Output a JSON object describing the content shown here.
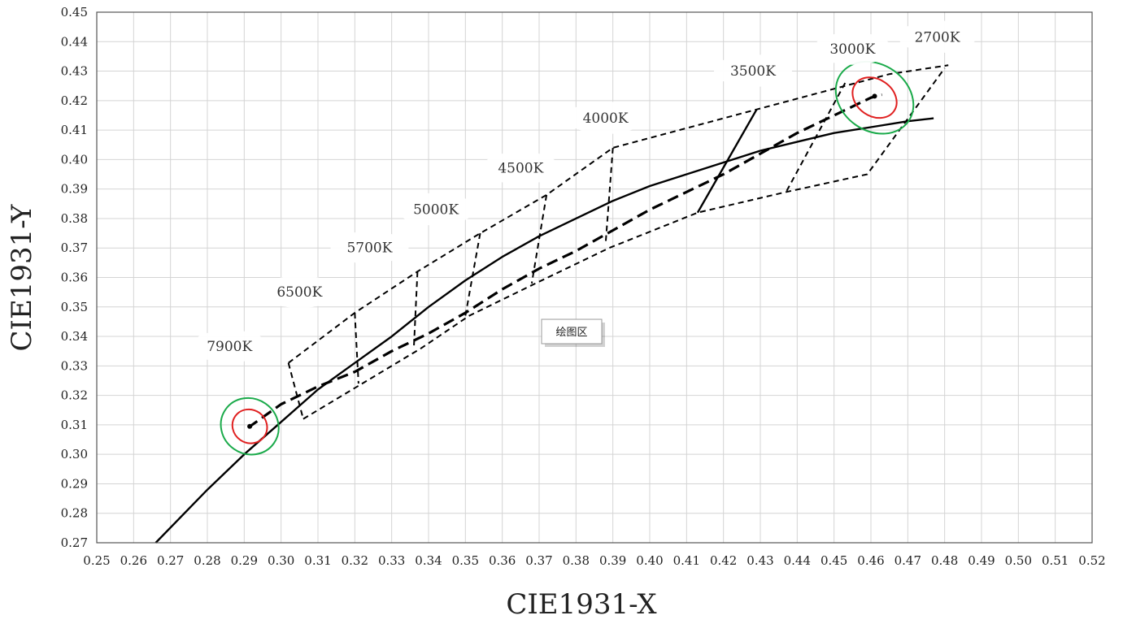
{
  "chart_data": {
    "type": "line",
    "xlabel": "CIE1931-X",
    "ylabel": "CIE1931-Y",
    "xlim": [
      0.25,
      0.52
    ],
    "ylim": [
      0.27,
      0.45
    ],
    "x_ticks": [
      "0.25",
      "0.26",
      "0.27",
      "0.28",
      "0.29",
      "0.30",
      "0.31",
      "0.32",
      "0.33",
      "0.34",
      "0.35",
      "0.36",
      "0.37",
      "0.38",
      "0.39",
      "0.40",
      "0.41",
      "0.42",
      "0.43",
      "0.44",
      "0.45",
      "0.46",
      "0.47",
      "0.48",
      "0.49",
      "0.50",
      "0.51",
      "0.52"
    ],
    "y_ticks": [
      "0.27",
      "0.28",
      "0.29",
      "0.30",
      "0.31",
      "0.32",
      "0.33",
      "0.34",
      "0.35",
      "0.36",
      "0.37",
      "0.38",
      "0.39",
      "0.40",
      "0.41",
      "0.42",
      "0.43",
      "0.44",
      "0.45"
    ],
    "grid": true,
    "plot_area_tag": "绘图区",
    "series": [
      {
        "style": "solid",
        "color": "#000000",
        "points": [
          [
            0.266,
            0.27
          ],
          [
            0.28,
            0.288
          ],
          [
            0.29,
            0.3
          ],
          [
            0.3,
            0.311
          ],
          [
            0.31,
            0.322
          ],
          [
            0.32,
            0.331
          ],
          [
            0.33,
            0.34
          ],
          [
            0.34,
            0.35
          ],
          [
            0.35,
            0.359
          ],
          [
            0.36,
            0.367
          ],
          [
            0.37,
            0.374
          ],
          [
            0.38,
            0.38
          ],
          [
            0.39,
            0.386
          ],
          [
            0.4,
            0.391
          ],
          [
            0.41,
            0.395
          ],
          [
            0.42,
            0.399
          ],
          [
            0.43,
            0.403
          ],
          [
            0.44,
            0.406
          ],
          [
            0.45,
            0.409
          ],
          [
            0.46,
            0.411
          ],
          [
            0.47,
            0.413
          ],
          [
            0.477,
            0.414
          ]
        ]
      },
      {
        "style": "dashed-bold",
        "color": "#000000",
        "points": [
          [
            0.291,
            0.309
          ],
          [
            0.3,
            0.317
          ],
          [
            0.31,
            0.323
          ],
          [
            0.32,
            0.328
          ],
          [
            0.33,
            0.335
          ],
          [
            0.34,
            0.341
          ],
          [
            0.35,
            0.348
          ],
          [
            0.36,
            0.356
          ],
          [
            0.37,
            0.363
          ],
          [
            0.38,
            0.369
          ],
          [
            0.39,
            0.376
          ],
          [
            0.4,
            0.383
          ],
          [
            0.41,
            0.389
          ],
          [
            0.42,
            0.395
          ],
          [
            0.43,
            0.402
          ],
          [
            0.44,
            0.409
          ],
          [
            0.45,
            0.415
          ],
          [
            0.46,
            0.421
          ],
          [
            0.463,
            0.422
          ]
        ]
      },
      {
        "style": "dashed",
        "color": "#000000",
        "points": [
          [
            0.302,
            0.331
          ],
          [
            0.32,
            0.348
          ],
          [
            0.337,
            0.362
          ],
          [
            0.354,
            0.375
          ],
          [
            0.372,
            0.388
          ],
          [
            0.39,
            0.404
          ],
          [
            0.429,
            0.417
          ],
          [
            0.465,
            0.429
          ],
          [
            0.481,
            0.432
          ]
        ]
      },
      {
        "style": "dashed",
        "color": "#000000",
        "points": [
          [
            0.306,
            0.312
          ],
          [
            0.322,
            0.324
          ],
          [
            0.338,
            0.336
          ],
          [
            0.351,
            0.347
          ],
          [
            0.369,
            0.358
          ],
          [
            0.389,
            0.37
          ],
          [
            0.413,
            0.382
          ],
          [
            0.437,
            0.389
          ],
          [
            0.459,
            0.395
          ],
          [
            0.48,
            0.431
          ]
        ]
      },
      {
        "style": "dashed",
        "color": "#000000",
        "points": [
          [
            0.302,
            0.331
          ],
          [
            0.306,
            0.312
          ]
        ]
      },
      {
        "style": "dashed",
        "color": "#000000",
        "points": [
          [
            0.32,
            0.348
          ],
          [
            0.321,
            0.324
          ]
        ]
      },
      {
        "style": "dashed",
        "color": "#000000",
        "points": [
          [
            0.337,
            0.362
          ],
          [
            0.336,
            0.336
          ]
        ]
      },
      {
        "style": "dashed",
        "color": "#000000",
        "points": [
          [
            0.354,
            0.375
          ],
          [
            0.35,
            0.347
          ]
        ]
      },
      {
        "style": "dashed",
        "color": "#000000",
        "points": [
          [
            0.372,
            0.388
          ],
          [
            0.368,
            0.358
          ]
        ]
      },
      {
        "style": "dashed",
        "color": "#000000",
        "points": [
          [
            0.39,
            0.404
          ],
          [
            0.388,
            0.371
          ]
        ]
      },
      {
        "style": "solid",
        "color": "#000000",
        "points": [
          [
            0.429,
            0.417
          ],
          [
            0.413,
            0.382
          ]
        ]
      },
      {
        "style": "dashed",
        "color": "#000000",
        "points": [
          [
            0.453,
            0.426
          ],
          [
            0.437,
            0.389
          ]
        ]
      }
    ],
    "ellipses": [
      {
        "cx": 0.2915,
        "cy": 0.3095,
        "rx": 0.0075,
        "ry": 0.01,
        "angle": -55,
        "color": "#1aaa4a"
      },
      {
        "cx": 0.2915,
        "cy": 0.3095,
        "rx": 0.0045,
        "ry": 0.006,
        "angle": -55,
        "color": "#e02020"
      },
      {
        "cx": 0.461,
        "cy": 0.421,
        "rx": 0.009,
        "ry": 0.014,
        "angle": -55,
        "color": "#1aaa4a"
      },
      {
        "cx": 0.461,
        "cy": 0.421,
        "rx": 0.005,
        "ry": 0.008,
        "angle": -55,
        "color": "#e02020"
      }
    ],
    "annotations": [
      {
        "text": "7900K",
        "x": 0.286,
        "y": 0.335
      },
      {
        "text": "6500K",
        "x": 0.305,
        "y": 0.3535
      },
      {
        "text": "5700K",
        "x": 0.324,
        "y": 0.3685
      },
      {
        "text": "5000K",
        "x": 0.342,
        "y": 0.3815
      },
      {
        "text": "4500K",
        "x": 0.365,
        "y": 0.3955
      },
      {
        "text": "4000K",
        "x": 0.388,
        "y": 0.4125
      },
      {
        "text": "3500K",
        "x": 0.428,
        "y": 0.4285
      },
      {
        "text": "3000K",
        "x": 0.455,
        "y": 0.436
      },
      {
        "text": "2700K",
        "x": 0.478,
        "y": 0.44
      }
    ]
  }
}
